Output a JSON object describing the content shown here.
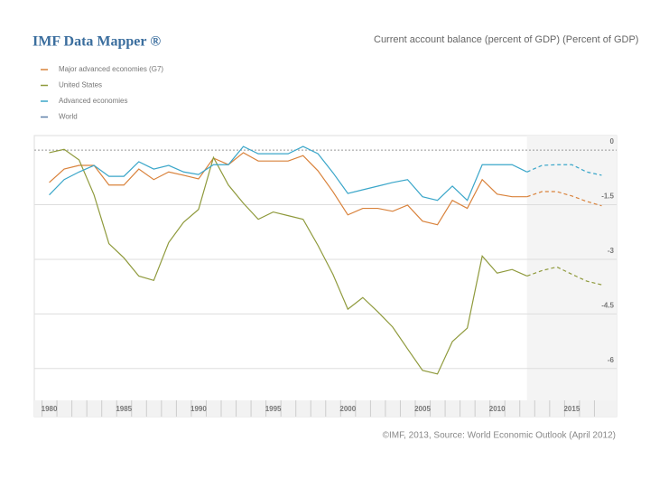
{
  "chart_data": {
    "type": "line",
    "title": "IMF Data Mapper ®",
    "subtitle": "Current account balance (percent of GDP) (Percent of GDP)",
    "source": "©IMF, 2013, Source: World Economic Outlook (April 2012)",
    "x": [
      1980,
      1981,
      1982,
      1983,
      1984,
      1985,
      1986,
      1987,
      1988,
      1989,
      1990,
      1991,
      1992,
      1993,
      1994,
      1995,
      1996,
      1997,
      1998,
      1999,
      2000,
      2001,
      2002,
      2003,
      2004,
      2005,
      2006,
      2007,
      2008,
      2009,
      2010,
      2011,
      2012,
      2013,
      2014,
      2015,
      2016,
      2017
    ],
    "series": [
      {
        "name": "Major advanced economies (G7)",
        "color": "#d9823b",
        "values": [
          -0.89,
          -0.52,
          -0.42,
          -0.42,
          -0.96,
          -0.96,
          -0.52,
          -0.81,
          -0.6,
          -0.69,
          -0.79,
          -0.22,
          -0.4,
          -0.07,
          -0.3,
          -0.3,
          -0.3,
          -0.15,
          -0.57,
          -1.14,
          -1.78,
          -1.6,
          -1.6,
          -1.68,
          -1.51,
          -1.95,
          -2.05,
          -1.38,
          -1.6,
          -0.81,
          -1.21,
          -1.28,
          -1.28,
          -1.14,
          -1.14,
          -1.26,
          -1.41,
          -1.53
        ]
      },
      {
        "name": "United States",
        "color": "#8f9a3c",
        "values": [
          -0.07,
          0.02,
          -0.27,
          -1.23,
          -2.57,
          -2.96,
          -3.46,
          -3.58,
          -2.54,
          -1.98,
          -1.63,
          -0.2,
          -0.96,
          -1.46,
          -1.9,
          -1.7,
          -1.8,
          -1.9,
          -2.62,
          -3.41,
          -4.37,
          -4.05,
          -4.44,
          -4.86,
          -5.46,
          -6.05,
          -6.15,
          -5.26,
          -4.89,
          -2.91,
          -3.38,
          -3.28,
          -3.46,
          -3.31,
          -3.21,
          -3.41,
          -3.6,
          -3.7
        ]
      },
      {
        "name": "Advanced economies",
        "color": "#3aa6c9",
        "values": [
          -1.23,
          -0.81,
          -0.6,
          -0.42,
          -0.72,
          -0.72,
          -0.32,
          -0.52,
          -0.42,
          -0.6,
          -0.67,
          -0.4,
          -0.4,
          0.1,
          -0.1,
          -0.1,
          -0.1,
          0.1,
          -0.1,
          -0.62,
          -1.19,
          -1.09,
          -0.99,
          -0.89,
          -0.81,
          -1.28,
          -1.38,
          -0.99,
          -1.38,
          -0.4,
          -0.4,
          -0.4,
          -0.6,
          -0.42,
          -0.4,
          -0.4,
          -0.6,
          -0.69
        ]
      },
      {
        "name": "World",
        "color": "#5d7fa8",
        "values": [
          null,
          null,
          null,
          null,
          null,
          null,
          null,
          null,
          null,
          null,
          null,
          null,
          null,
          null,
          null,
          null,
          null,
          null,
          null,
          null,
          null,
          null,
          null,
          null,
          null,
          null,
          null,
          null,
          null,
          null,
          null,
          null,
          null,
          null,
          null,
          null,
          null,
          null
        ]
      }
    ],
    "forecast_start": 2012,
    "xlim": [
      1979,
      2018
    ],
    "xticks": [
      1980,
      1985,
      1990,
      1995,
      2000,
      2005,
      2010,
      2015
    ],
    "ylim": [
      -6.8,
      0.4
    ],
    "yticks": [
      0,
      -1.5,
      -3,
      -4.5,
      -6
    ],
    "grid": true
  }
}
